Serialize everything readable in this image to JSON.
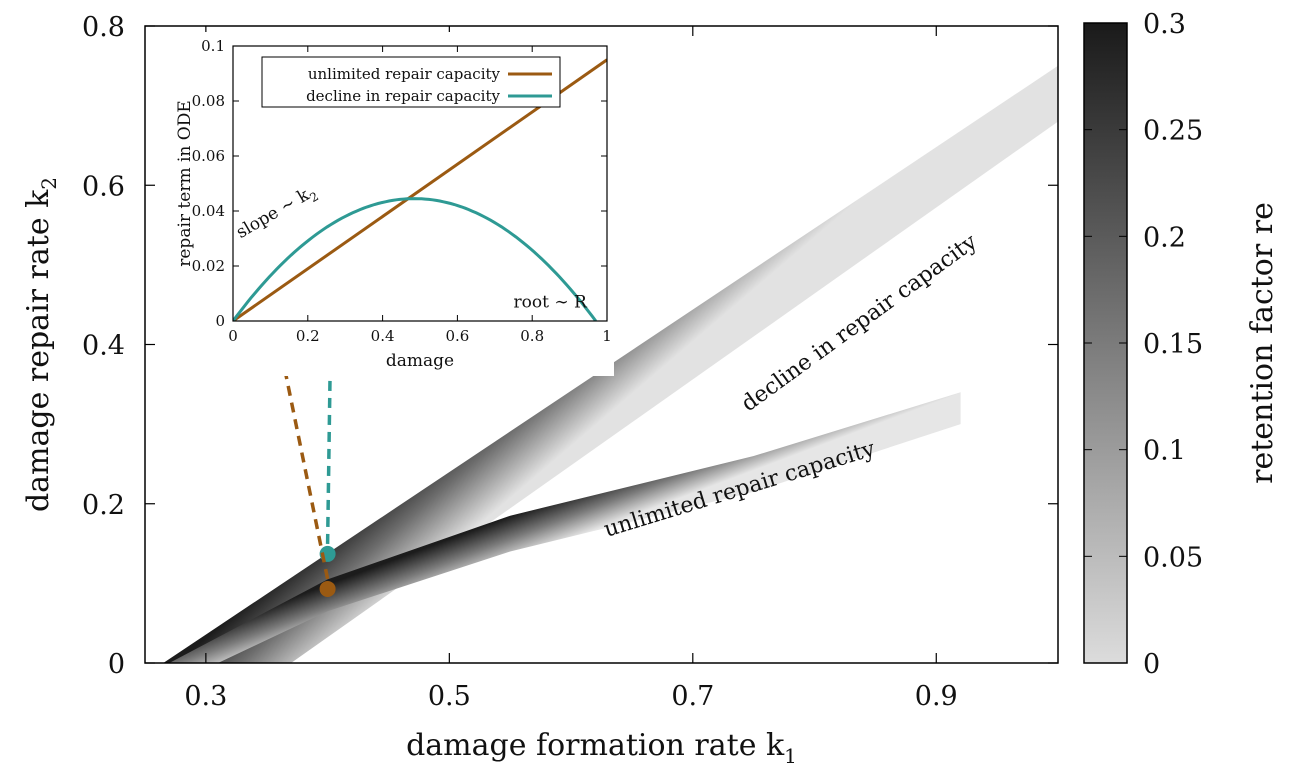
{
  "colors": {
    "unlimited": "#9b5a12",
    "decline": "#2e9a94",
    "frame": "#000000"
  },
  "chart_data": [
    {
      "type": "heatmap",
      "xlabel": "damage formation rate k",
      "xlabel_sub": "1",
      "ylabel": "damage repair rate k",
      "ylabel_sub": "2",
      "xlim": [
        0.25,
        1.0
      ],
      "ylim": [
        0,
        0.8
      ],
      "xticks": [
        0.3,
        0.5,
        0.7,
        0.9
      ],
      "xtick_labels": [
        "0.3",
        "0.5",
        "0.7",
        "0.9"
      ],
      "yticks": [
        0,
        0.2,
        0.4,
        0.6,
        0.8
      ],
      "ytick_labels": [
        "0",
        "0.2",
        "0.4",
        "0.6",
        "0.8"
      ],
      "colorbar": {
        "label": "retention factor re",
        "range": [
          0,
          0.3
        ],
        "ticks": [
          0,
          0.05,
          0.1,
          0.15,
          0.2,
          0.25,
          0.3
        ],
        "tick_labels": [
          "0",
          "0.05",
          "0.1",
          "0.15",
          "0.2",
          "0.25",
          "0.3"
        ],
        "color_low": "#dcdcdc",
        "color_high": "#1a1a1a"
      },
      "bands": [
        {
          "name": "decline in repair capacity",
          "upper_edge": [
            [
              0.265,
              0.0
            ],
            [
              1.0,
              0.75
            ]
          ],
          "lower_edge": [
            [
              0.37,
              0.0
            ],
            [
              1.0,
              0.68
            ]
          ]
        },
        {
          "name": "unlimited repair capacity",
          "upper_edge": [
            [
              0.27,
              0.0
            ],
            [
              0.4,
              0.105
            ],
            [
              0.55,
              0.185
            ],
            [
              0.75,
              0.26
            ],
            [
              0.92,
              0.34
            ]
          ],
          "lower_edge": [
            [
              0.31,
              0.0
            ],
            [
              0.4,
              0.065
            ],
            [
              0.55,
              0.14
            ],
            [
              0.75,
              0.215
            ],
            [
              0.92,
              0.3
            ]
          ]
        }
      ],
      "points": [
        {
          "series": "decline in repair capacity",
          "x": 0.4,
          "y": 0.137
        },
        {
          "series": "unlimited repair capacity",
          "x": 0.4,
          "y": 0.093
        }
      ],
      "annotations": [
        {
          "text": "decline in repair capacity",
          "x": 0.84,
          "y": 0.42,
          "rotation_deg": -36
        },
        {
          "text": "unlimited repair capacity",
          "x": 0.74,
          "y": 0.21,
          "rotation_deg": -17
        }
      ]
    },
    {
      "type": "line",
      "xlabel": "damage",
      "ylabel": "repair term in ODE",
      "xlim": [
        0,
        1
      ],
      "ylim": [
        0,
        0.1
      ],
      "xticks": [
        0,
        0.2,
        0.4,
        0.6,
        0.8,
        1
      ],
      "xtick_labels": [
        "0",
        "0.2",
        "0.4",
        "0.6",
        "0.8",
        "1"
      ],
      "yticks": [
        0,
        0.02,
        0.04,
        0.06,
        0.08,
        0.1
      ],
      "ytick_labels": [
        "0",
        "0.02",
        "0.04",
        "0.06",
        "0.08",
        "0.1"
      ],
      "legend": "top-left",
      "series": [
        {
          "name": "unlimited repair capacity",
          "type": "line",
          "x": [
            0,
            1
          ],
          "y": [
            0,
            0.095
          ]
        },
        {
          "name": "decline in repair capacity",
          "type": "parabola",
          "root": 0.97,
          "peak_x": 0.485,
          "peak_y": 0.0445
        }
      ],
      "markers": [
        {
          "series": "unlimited repair capacity",
          "x": 0.1,
          "y": 0.0095
        },
        {
          "series": "decline in repair capacity",
          "x": 0.265,
          "y": 0.033
        }
      ],
      "annotations": [
        {
          "text": "slope ∼ k",
          "sub": "2",
          "x": 0.02,
          "y": 0.03
        },
        {
          "text": "root ∼ R",
          "x": 0.75,
          "y": 0.005
        }
      ]
    }
  ]
}
